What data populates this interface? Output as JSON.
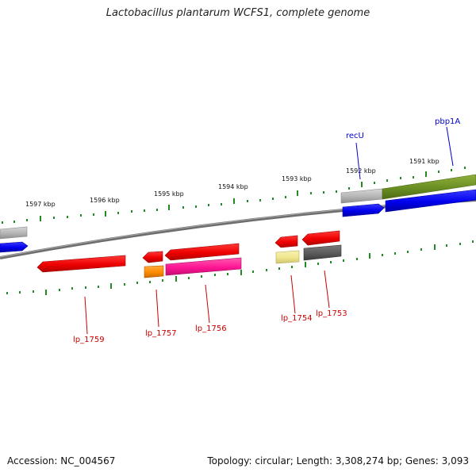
{
  "title": "Lactobacillus plantarum WCFS1, complete genome",
  "footer": {
    "accession": "Accession: NC_004567",
    "summary": "Topology: circular; Length: 3,308,274 bp; Genes: 3,093"
  },
  "scale_labels": [
    {
      "label": "1597 kbp",
      "kbp": 1597
    },
    {
      "label": "1596 kbp",
      "kbp": 1596
    },
    {
      "label": "1595 kbp",
      "kbp": 1595
    },
    {
      "label": "1594 kbp",
      "kbp": 1594
    },
    {
      "label": "1593 kbp",
      "kbp": 1593
    },
    {
      "label": "1592 kbp",
      "kbp": 1592
    },
    {
      "label": "1591 kbp",
      "kbp": 1591
    }
  ],
  "gene_labels": [
    {
      "id": "recU",
      "text": "recU",
      "color": "#0000cc"
    },
    {
      "id": "pbp1A",
      "text": "pbp1A",
      "color": "#0000cc"
    },
    {
      "id": "lp_1759",
      "text": "lp_1759",
      "color": "#cc0000"
    },
    {
      "id": "lp_1757",
      "text": "lp_1757",
      "color": "#cc0000"
    },
    {
      "id": "lp_1756",
      "text": "lp_1756",
      "color": "#cc0000"
    },
    {
      "id": "lp_1754",
      "text": "lp_1754",
      "color": "#cc0000"
    },
    {
      "id": "lp_1753",
      "text": "lp_1753",
      "color": "#cc0000"
    }
  ],
  "colors": {
    "backbone": "#7a7a7a",
    "ticks": "#228b22",
    "cds_red": "#ee1111",
    "cds_blue": "#0000ee",
    "cds_gray": "#b0b0b0",
    "cds_olive": "#6b8e23",
    "cds_orange": "#ff8c00",
    "cds_magenta": "#ff1493",
    "cds_khaki": "#f0e68c",
    "cds_darkgray": "#5a5a5a"
  }
}
